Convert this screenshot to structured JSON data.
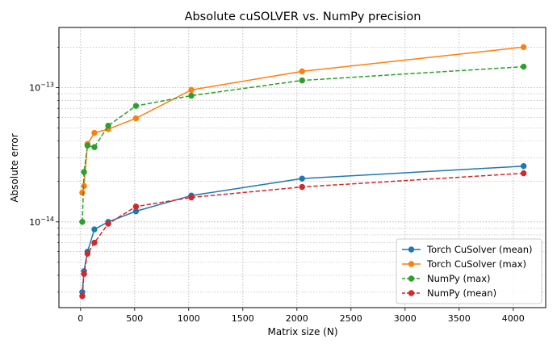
{
  "chart_data": {
    "type": "line",
    "title": "Absolute cuSOLVER vs. NumPy precision",
    "xlabel": "Matrix size (N)",
    "ylabel": "Absolute error",
    "yscale": "log",
    "xlim": [
      -200,
      4300
    ],
    "ylim": [
      2.3e-15,
      2.8e-13
    ],
    "x_ticks": [
      0,
      500,
      1000,
      1500,
      2000,
      2500,
      3000,
      3500,
      4000
    ],
    "x_tick_labels": [
      "0",
      "500",
      "1000",
      "1500",
      "2000",
      "2500",
      "3000",
      "3500",
      "4000"
    ],
    "y_major_ticks": [
      1e-14,
      1e-13
    ],
    "y_major_tick_labels": [
      {
        "base": "10",
        "exp": "−14"
      },
      {
        "base": "10",
        "exp": "−13"
      }
    ],
    "y_minor_ticks": [
      3e-15,
      4e-15,
      5e-15,
      6e-15,
      7e-15,
      8e-15,
      9e-15,
      2e-14,
      3e-14,
      4e-14,
      5e-14,
      6e-14,
      7e-14,
      8e-14,
      9e-14,
      2e-13
    ],
    "grid": true,
    "legend_position": "lower-right",
    "x": [
      16,
      32,
      64,
      128,
      256,
      512,
      1024,
      2048,
      4096
    ],
    "series": [
      {
        "name": "Torch CuSolver (mean)",
        "color": "#1f77b4",
        "linestyle": "solid",
        "marker": "circle",
        "values": [
          3e-15,
          4.3e-15,
          6e-15,
          8.8e-15,
          1e-14,
          1.2e-14,
          1.57e-14,
          2.1e-14,
          2.6e-14
        ]
      },
      {
        "name": "Torch CuSolver (max)",
        "color": "#ff7f0e",
        "linestyle": "solid",
        "marker": "circle",
        "values": [
          1.65e-14,
          1.85e-14,
          3.8e-14,
          4.6e-14,
          4.9e-14,
          5.9e-14,
          9.6e-14,
          1.32e-13,
          2e-13
        ]
      },
      {
        "name": "NumPy (max)",
        "color": "#2ca02c",
        "linestyle": "dashed",
        "marker": "circle",
        "values": [
          1e-14,
          2.35e-14,
          3.7e-14,
          3.6e-14,
          5.2e-14,
          7.3e-14,
          8.7e-14,
          1.13e-13,
          1.43e-13
        ]
      },
      {
        "name": "NumPy (mean)",
        "color": "#d62728",
        "linestyle": "dashed",
        "marker": "circle",
        "values": [
          2.8e-15,
          4.1e-15,
          5.8e-15,
          7e-15,
          9.7e-15,
          1.3e-14,
          1.52e-14,
          1.82e-14,
          2.3e-14
        ]
      }
    ]
  }
}
